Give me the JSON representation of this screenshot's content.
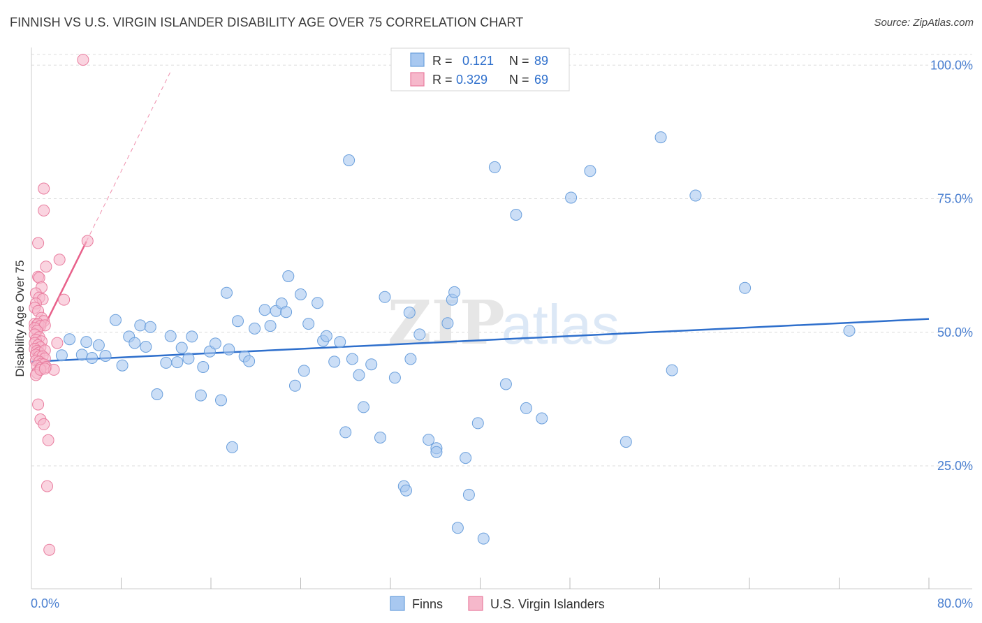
{
  "header": {
    "title": "FINNISH VS U.S. VIRGIN ISLANDER DISABILITY AGE OVER 75 CORRELATION CHART",
    "source": "Source: ZipAtlas.com"
  },
  "watermark": {
    "zip": "ZIP",
    "atlas": "atlas"
  },
  "colors": {
    "finns_fill": "#a8c8f0",
    "finns_stroke": "#6a9fdc",
    "finns_line": "#2e6fcc",
    "vi_fill": "#f6b8cb",
    "vi_stroke": "#e97d9f",
    "vi_line": "#e8608a",
    "axis_label": "#4a7fd0",
    "grid": "#dcdcdc"
  },
  "chart_data": {
    "type": "scatter",
    "title": "FINNISH VS U.S. VIRGIN ISLANDER DISABILITY AGE OVER 75 CORRELATION CHART",
    "xlabel": "",
    "ylabel": "Disability Age Over 75",
    "xlim": [
      0,
      80
    ],
    "ylim": [
      2,
      102
    ],
    "x_tick_labels": [
      "0.0%",
      "80.0%"
    ],
    "y_ticks": [
      25,
      50,
      75,
      100
    ],
    "y_tick_labels": [
      "25.0%",
      "50.0%",
      "75.0%",
      "100.0%"
    ],
    "grid": true,
    "legend_position": "top-center",
    "legend_stats": [
      {
        "r_label": "R =",
        "r_value": "0.121",
        "n_label": "N =",
        "n_value": "89"
      },
      {
        "r_label": "R =",
        "r_value": "0.329",
        "n_label": "N =",
        "n_value": "69"
      }
    ],
    "series": [
      {
        "name": "Finns",
        "trend": {
          "x0": 0,
          "y0": 44.5,
          "x1": 80,
          "y1": 52.5
        },
        "points": [
          [
            2.7,
            45.7
          ],
          [
            3.4,
            48.7
          ],
          [
            4.5,
            45.8
          ],
          [
            4.9,
            48.2
          ],
          [
            5.4,
            45.2
          ],
          [
            6.0,
            47.6
          ],
          [
            6.6,
            45.6
          ],
          [
            7.5,
            52.3
          ],
          [
            8.1,
            43.8
          ],
          [
            8.7,
            49.2
          ],
          [
            9.2,
            48.0
          ],
          [
            9.7,
            51.3
          ],
          [
            10.2,
            47.3
          ],
          [
            10.6,
            51.0
          ],
          [
            11.2,
            38.4
          ],
          [
            12.0,
            44.3
          ],
          [
            12.4,
            49.3
          ],
          [
            13.0,
            44.4
          ],
          [
            13.4,
            47.1
          ],
          [
            14.0,
            45.1
          ],
          [
            14.3,
            49.2
          ],
          [
            15.1,
            38.2
          ],
          [
            15.3,
            43.5
          ],
          [
            15.9,
            46.4
          ],
          [
            16.4,
            47.9
          ],
          [
            16.9,
            37.3
          ],
          [
            17.4,
            57.4
          ],
          [
            17.6,
            46.8
          ],
          [
            18.4,
            52.1
          ],
          [
            19.0,
            45.5
          ],
          [
            19.4,
            44.6
          ],
          [
            17.9,
            28.5
          ],
          [
            19.9,
            50.7
          ],
          [
            20.8,
            54.2
          ],
          [
            21.3,
            51.2
          ],
          [
            21.8,
            54.0
          ],
          [
            22.3,
            55.4
          ],
          [
            22.7,
            53.8
          ],
          [
            22.9,
            60.5
          ],
          [
            23.5,
            40.0
          ],
          [
            24.0,
            57.1
          ],
          [
            24.3,
            42.8
          ],
          [
            24.7,
            51.6
          ],
          [
            25.5,
            55.5
          ],
          [
            26.0,
            48.4
          ],
          [
            26.3,
            49.3
          ],
          [
            27.0,
            44.5
          ],
          [
            27.5,
            48.2
          ],
          [
            28.0,
            31.3
          ],
          [
            28.6,
            45.0
          ],
          [
            29.2,
            42.0
          ],
          [
            29.6,
            36.0
          ],
          [
            28.3,
            82.2
          ],
          [
            30.3,
            44.0
          ],
          [
            31.1,
            30.3
          ],
          [
            31.5,
            56.6
          ],
          [
            32.4,
            41.5
          ],
          [
            33.2,
            21.2
          ],
          [
            33.8,
            45.0
          ],
          [
            33.4,
            20.4
          ],
          [
            34.6,
            49.6
          ],
          [
            33.7,
            53.7
          ],
          [
            35.4,
            29.9
          ],
          [
            36.1,
            28.3
          ],
          [
            36.1,
            27.6
          ],
          [
            37.1,
            51.7
          ],
          [
            37.5,
            56.1
          ],
          [
            37.7,
            57.5
          ],
          [
            38.7,
            26.5
          ],
          [
            39.0,
            19.6
          ],
          [
            39.8,
            33.0
          ],
          [
            40.3,
            11.4
          ],
          [
            38.0,
            13.4
          ],
          [
            41.3,
            80.9
          ],
          [
            42.3,
            40.3
          ],
          [
            43.2,
            72.0
          ],
          [
            44.1,
            35.8
          ],
          [
            45.5,
            33.9
          ],
          [
            48.1,
            75.2
          ],
          [
            49.8,
            80.2
          ],
          [
            53.0,
            29.5
          ],
          [
            56.1,
            86.5
          ],
          [
            57.1,
            42.9
          ],
          [
            59.2,
            75.6
          ],
          [
            63.6,
            58.3
          ],
          [
            72.9,
            50.3
          ]
        ]
      },
      {
        "name": "U.S. Virgin Islanders",
        "trend": {
          "x0": 0.3,
          "y0": 47.5,
          "x1": 4.9,
          "y1": 67.0,
          "dash_to_x": 12.5
        },
        "points": [
          [
            4.6,
            101.0
          ],
          [
            1.1,
            76.9
          ],
          [
            1.1,
            72.8
          ],
          [
            0.6,
            66.7
          ],
          [
            5.0,
            67.1
          ],
          [
            2.5,
            63.6
          ],
          [
            1.3,
            62.3
          ],
          [
            0.6,
            60.4
          ],
          [
            0.7,
            60.2
          ],
          [
            0.9,
            58.4
          ],
          [
            0.4,
            57.3
          ],
          [
            0.7,
            56.5
          ],
          [
            1.0,
            56.2
          ],
          [
            2.9,
            56.1
          ],
          [
            0.4,
            55.4
          ],
          [
            0.3,
            54.6
          ],
          [
            0.6,
            54.0
          ],
          [
            0.9,
            52.7
          ],
          [
            1.1,
            52.1
          ],
          [
            0.3,
            51.6
          ],
          [
            0.5,
            51.4
          ],
          [
            0.6,
            51.6
          ],
          [
            0.8,
            51.2
          ],
          [
            1.2,
            51.3
          ],
          [
            0.3,
            50.8
          ],
          [
            0.5,
            50.3
          ],
          [
            0.3,
            49.6
          ],
          [
            0.7,
            49.1
          ],
          [
            0.4,
            48.6
          ],
          [
            0.9,
            48.3
          ],
          [
            0.3,
            48.0
          ],
          [
            0.6,
            47.6
          ],
          [
            0.8,
            47.2
          ],
          [
            2.3,
            48.0
          ],
          [
            0.3,
            46.9
          ],
          [
            0.5,
            46.5
          ],
          [
            0.7,
            46.2
          ],
          [
            1.2,
            46.6
          ],
          [
            0.4,
            45.8
          ],
          [
            0.7,
            45.5
          ],
          [
            1.0,
            45.5
          ],
          [
            1.2,
            45.1
          ],
          [
            0.4,
            44.7
          ],
          [
            0.7,
            44.5
          ],
          [
            0.9,
            44.1
          ],
          [
            1.1,
            44.0
          ],
          [
            0.5,
            43.7
          ],
          [
            0.8,
            43.3
          ],
          [
            1.3,
            43.5
          ],
          [
            2.0,
            43.0
          ],
          [
            0.5,
            42.4
          ],
          [
            0.4,
            42.0
          ],
          [
            0.8,
            43.0
          ],
          [
            1.2,
            43.2
          ],
          [
            0.6,
            36.5
          ],
          [
            0.8,
            33.7
          ],
          [
            1.1,
            32.8
          ],
          [
            1.5,
            29.8
          ],
          [
            1.4,
            21.2
          ],
          [
            1.6,
            9.3
          ]
        ]
      }
    ]
  },
  "legend_bottom": [
    {
      "label": "Finns"
    },
    {
      "label": "U.S. Virgin Islanders"
    }
  ]
}
